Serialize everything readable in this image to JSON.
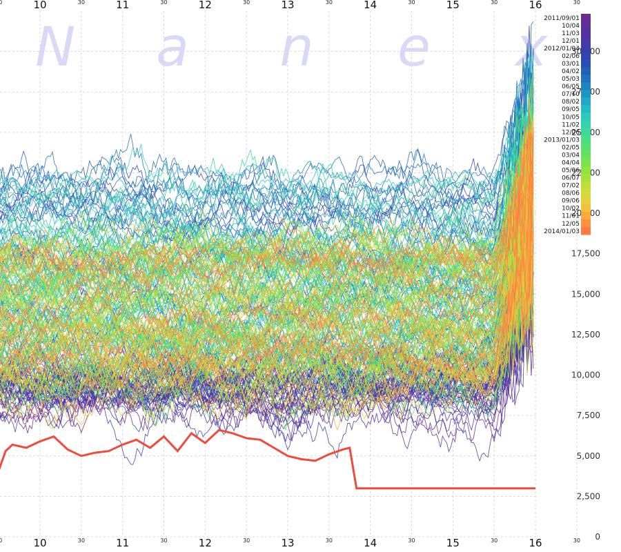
{
  "chart_data": {
    "type": "line",
    "title": "",
    "xlabel": "",
    "ylabel": "",
    "x_hours": [
      "10",
      "11",
      "12",
      "13",
      "14",
      "15",
      "16"
    ],
    "x_half_label": "30",
    "xlim": [
      "09:30",
      "16:30"
    ],
    "ylim": [
      0,
      32500
    ],
    "y_ticks": [
      "0",
      "2,500",
      "5,000",
      "7,500",
      "10,000",
      "12,500",
      "15,000",
      "17,500",
      "20,000",
      "22,500",
      "25,000",
      "27,500",
      "30,000"
    ],
    "grid": true,
    "legend_placement": "top-right",
    "legend_entries": [
      "2011/09/01",
      "10/04",
      "11/03",
      "12/01",
      "2012/01/04",
      "02/06",
      "03/01",
      "04/02",
      "05/03",
      "06/05",
      "07/10",
      "08/02",
      "09/05",
      "10/05",
      "11/02",
      "12/06",
      "2013/01/03",
      "02/05",
      "03/04",
      "04/04",
      "05/06",
      "06/07",
      "07/02",
      "08/06",
      "09/06",
      "10/02",
      "11/01",
      "12/05",
      "2014/01/03"
    ],
    "legend_colors": [
      "#6a2c8e",
      "#5e2f95",
      "#54329c",
      "#4a37a3",
      "#3e3ca8",
      "#3344ae",
      "#2a4fb2",
      "#2460b6",
      "#1f72bb",
      "#1c84bf",
      "#1e96c2",
      "#22a8c4",
      "#28bac4",
      "#2dc9bd",
      "#33d3ac",
      "#3ed999",
      "#4add84",
      "#58df70",
      "#67e05f",
      "#79e24e",
      "#8ee243",
      "#a5e13d",
      "#bcdf3b",
      "#d2da3d",
      "#e5d03e",
      "#f2c03d",
      "#f8aa3d",
      "#fc9140",
      "#ff7a45"
    ],
    "series": [
      {
        "name": "2014/01/03",
        "x": [
          "09:30",
          "09:35",
          "09:40",
          "09:50",
          "10:00",
          "10:10",
          "10:20",
          "10:30",
          "10:40",
          "10:50",
          "11:00",
          "11:10",
          "11:20",
          "11:30",
          "11:40",
          "11:50",
          "12:00",
          "12:10",
          "12:20",
          "12:30",
          "12:40",
          "12:50",
          "13:00",
          "13:10",
          "13:20",
          "13:30",
          "13:40",
          "13:45",
          "13:50",
          "14:00",
          "14:15",
          "14:30",
          "14:45",
          "15:00",
          "15:15",
          "15:30",
          "15:45",
          "16:00"
        ],
        "values": [
          4100,
          5300,
          5700,
          5500,
          5900,
          6200,
          5400,
          5000,
          5200,
          5300,
          5700,
          6000,
          5500,
          6200,
          5300,
          6400,
          5800,
          6600,
          6400,
          6100,
          6000,
          5500,
          5000,
          4800,
          4700,
          5100,
          5400,
          5500,
          3000,
          3000,
          3000,
          3000,
          3000,
          3000,
          3000,
          3000,
          3000,
          3000
        ]
      }
    ],
    "watermark": [
      "N",
      "a",
      "n",
      "e",
      "x"
    ]
  }
}
